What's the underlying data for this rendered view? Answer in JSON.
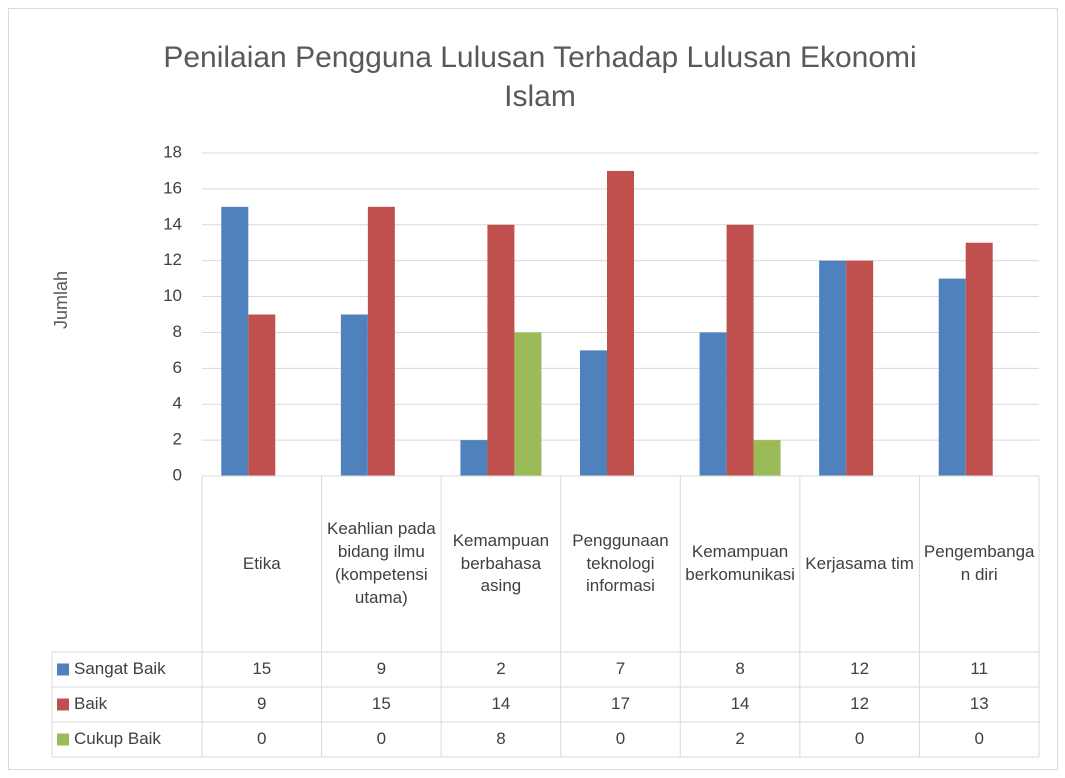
{
  "chart_data": {
    "type": "bar",
    "title": "Penilaian Pengguna Lulusan Terhadap Lulusan Ekonomi Islam",
    "y_label": "Jumlah",
    "categories": [
      "Etika",
      "Keahlian pada bidang ilmu (kompetensi utama)",
      "Kemampuan berbahasa asing",
      "Penggunaan teknologi informasi",
      "Kemampuan berkomunikasi",
      "Kerjasama tim",
      "Pengembangan diri"
    ],
    "series": [
      {
        "name": "Sangat Baik",
        "color": "#4f81bd",
        "values": [
          15,
          9,
          2,
          7,
          8,
          12,
          11
        ]
      },
      {
        "name": "Baik",
        "color": "#c0504d",
        "values": [
          9,
          15,
          14,
          17,
          14,
          12,
          13
        ]
      },
      {
        "name": "Cukup Baik",
        "color": "#9bbb59",
        "values": [
          0,
          0,
          8,
          0,
          2,
          0,
          0
        ]
      }
    ],
    "ylim": [
      0,
      18
    ],
    "yticks": [
      0,
      2,
      4,
      6,
      8,
      10,
      12,
      14,
      16,
      18
    ],
    "grid": true,
    "data_table": true
  }
}
